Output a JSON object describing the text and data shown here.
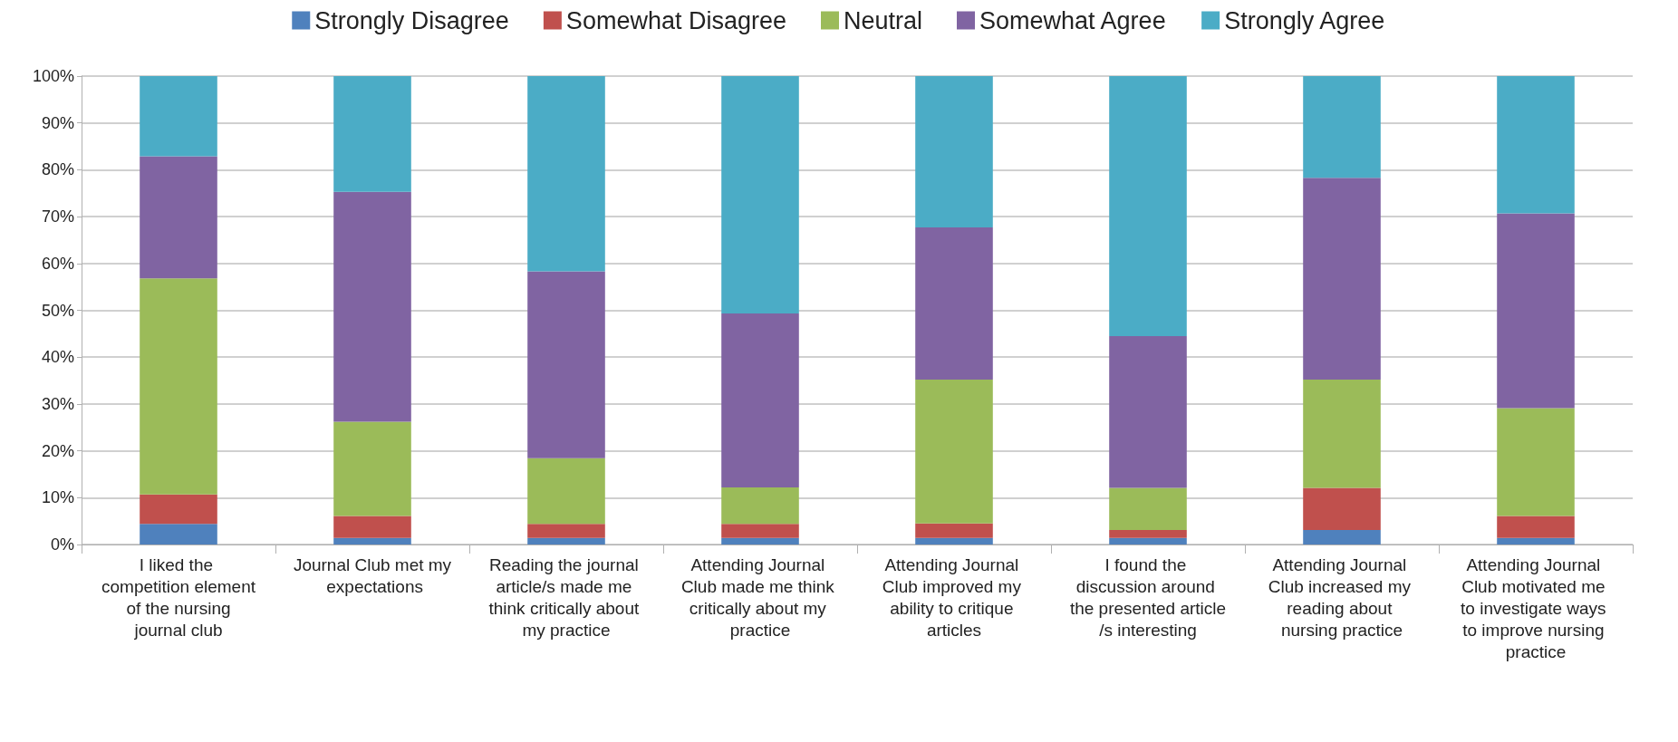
{
  "chart_data": {
    "type": "bar",
    "stacked": true,
    "categories": [
      "I liked the competition element of the nursing journal club",
      "Journal Club met my expectations",
      "Reading the journal article/s made me think critically about my practice",
      "Attending Journal Club made me think critically about my practice",
      "Attending Journal Club improved my ability to critique articles",
      "I found the discussion around the presented article/s interesting",
      "Attending Journal Club increased my reading about nursing practice",
      "Attending Journal Club motivated me to investigate ways to improve nursing practice"
    ],
    "series": [
      {
        "name": "Strongly Disagree",
        "color": "#4f81bd",
        "values": [
          4.4,
          1.4,
          1.4,
          1.4,
          1.4,
          1.4,
          3.1,
          1.4
        ]
      },
      {
        "name": "Somewhat Disagree",
        "color": "#c0504d",
        "values": [
          6.3,
          4.7,
          3.0,
          3.0,
          3.1,
          1.7,
          9.0,
          4.7
        ]
      },
      {
        "name": "Neutral",
        "color": "#9bbb59",
        "values": [
          46.1,
          20.1,
          14.0,
          7.8,
          30.7,
          9.0,
          23.1,
          23.0
        ]
      },
      {
        "name": "Somewhat Agree",
        "color": "#8064a2",
        "values": [
          26.1,
          49.1,
          39.9,
          37.1,
          32.5,
          32.4,
          43.1,
          41.6
        ]
      },
      {
        "name": "Strongly Agree",
        "color": "#4bacc6",
        "values": [
          17.1,
          24.7,
          41.7,
          50.7,
          32.3,
          55.5,
          21.7,
          29.3
        ]
      }
    ],
    "ylim": [
      0,
      100
    ],
    "yticks": [
      {
        "value": 0,
        "label": "0%"
      },
      {
        "value": 10,
        "label": "10%"
      },
      {
        "value": 20,
        "label": "20%"
      },
      {
        "value": 30,
        "label": "30%"
      },
      {
        "value": 40,
        "label": "40%"
      },
      {
        "value": 50,
        "label": "50%"
      },
      {
        "value": 60,
        "label": "60%"
      },
      {
        "value": 70,
        "label": "70%"
      },
      {
        "value": 80,
        "label": "80%"
      },
      {
        "value": 90,
        "label": "90%"
      },
      {
        "value": 100,
        "label": "100%"
      }
    ],
    "grid": "y",
    "legend": "top"
  }
}
